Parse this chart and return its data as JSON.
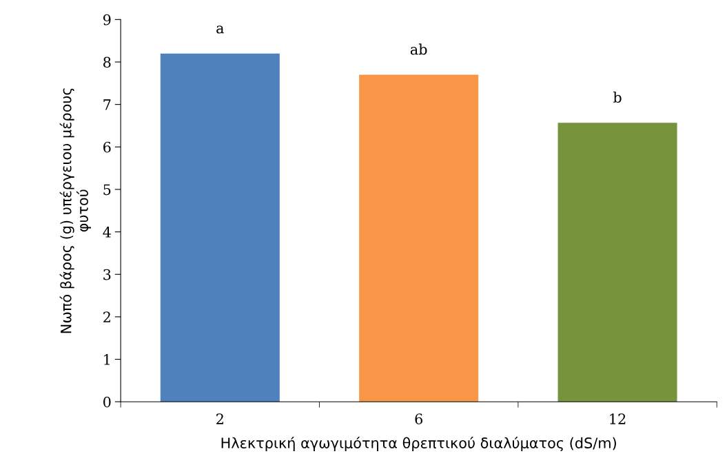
{
  "chart_data": {
    "type": "bar",
    "xlabel": "Ηλεκτρική αγωγιμότητα θρεπτικού διαλύματος (dS/m)",
    "ylabel": "Νωπό βάρος (g) υπέργειου μέρους\nφυτού",
    "categories": [
      "2",
      "6",
      "12"
    ],
    "values": [
      8.2,
      7.7,
      6.57
    ],
    "colors": [
      "#4f81bd",
      "#f79646",
      "#77933c"
    ],
    "ylim": [
      0,
      9
    ],
    "yticks": [
      0,
      1,
      2,
      3,
      4,
      5,
      6,
      7,
      8,
      9
    ],
    "grid": false,
    "annotations": [
      "a",
      "ab",
      "b"
    ]
  }
}
